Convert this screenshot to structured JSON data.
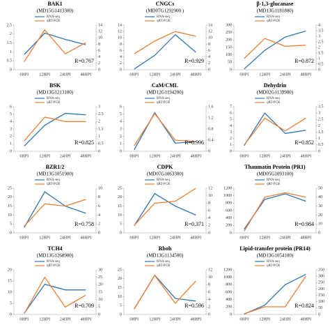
{
  "chart_data": [
    {
      "type": "line",
      "title": "BAK1",
      "subtitle": "(MD15G1413300)",
      "categories": [
        "0HPI",
        "12HPI",
        "24HPI",
        "48HPI"
      ],
      "series": [
        {
          "name": "RNA-seq",
          "color": "#2e75b6",
          "values": [
            0.85,
            2.05,
            1.7,
            1.4
          ]
        },
        {
          "name": "qRT-PCR",
          "color": "#ed7d31",
          "axis": "y2",
          "values": [
            2.5,
            12.5,
            5,
            8.5
          ]
        }
      ],
      "ylim": [
        0,
        2.5
      ],
      "yticks": [
        0,
        0.5,
        1,
        1.5,
        2,
        2.5
      ],
      "y2lim": [
        0,
        14
      ],
      "y2ticks": [
        0,
        2,
        4,
        6,
        8,
        10,
        12,
        14
      ],
      "annotation": "R=0.767"
    },
    {
      "type": "line",
      "title": "CNGCs",
      "subtitle": "(MD07G1292900 )",
      "categories": [
        "0HPI",
        "12HPI",
        "24HPI",
        "48HPI"
      ],
      "series": [
        {
          "name": "RNA-seq",
          "color": "#2e75b6",
          "values": [
            0.2,
            4.5,
            11,
            5.5
          ]
        },
        {
          "name": "qRT-PCR",
          "color": "#ed7d31",
          "axis": "y2",
          "values": [
            5,
            9,
            12,
            10.5
          ]
        }
      ],
      "ylim": [
        0,
        14
      ],
      "yticks": [
        0,
        2,
        4,
        6,
        8,
        10,
        12,
        14
      ],
      "y2lim": [
        0,
        14
      ],
      "y2ticks": [
        0,
        2,
        4,
        6,
        8,
        10,
        12,
        14
      ],
      "annotation": "R=0.929"
    },
    {
      "type": "line",
      "title": "β-1,3-glucanase",
      "subtitle": "(MD13G1181800)",
      "categories": [
        "0HPI",
        "12HPI",
        "24HPI",
        "48HPI"
      ],
      "series": [
        {
          "name": "RNA-seq",
          "color": "#2e75b6",
          "values": [
            5,
            130,
            220,
            260
          ]
        },
        {
          "name": "qRT-PCR",
          "color": "#ed7d31",
          "axis": "y2",
          "values": [
            1,
            2.8,
            2.1,
            2.2
          ]
        }
      ],
      "ylim": [
        0,
        300
      ],
      "yticks": [
        0,
        50,
        100,
        150,
        200,
        250,
        300
      ],
      "y2lim": [
        0,
        4
      ],
      "y2ticks": [
        0,
        0.5,
        1,
        1.5,
        2,
        2.5,
        3,
        3.5,
        4
      ],
      "annotation": "R=0.872"
    },
    {
      "type": "line",
      "title": "BSK",
      "subtitle": "(MD13G1213100)",
      "categories": [
        "0HPI",
        "12HPI",
        "24HPI",
        "48HPI"
      ],
      "series": [
        {
          "name": "RNA-seq",
          "color": "#2e75b6",
          "values": [
            0.7,
            3.5,
            5.1,
            4.9
          ]
        },
        {
          "name": "qRT-PCR",
          "color": "#ed7d31",
          "axis": "y2",
          "values": [
            0.7,
            2.3,
            2,
            2
          ]
        }
      ],
      "ylim": [
        0,
        6
      ],
      "yticks": [
        0,
        1,
        2,
        3,
        4,
        5,
        6
      ],
      "y2lim": [
        0,
        3
      ],
      "y2ticks": [
        0,
        0.5,
        1,
        1.5,
        2,
        2.5,
        3
      ],
      "annotation": "R=0.825"
    },
    {
      "type": "line",
      "title": "CaM/CML",
      "subtitle": "(MD12G1194200)",
      "categories": [
        "0HPI",
        "12HPI",
        "24HPI",
        "48HPI"
      ],
      "series": [
        {
          "name": "RNA-seq",
          "color": "#2e75b6",
          "values": [
            0.2,
            5.2,
            1.1,
            1.3
          ]
        },
        {
          "name": "qRT-PCR",
          "color": "#ed7d31",
          "axis": "y2",
          "values": [
            0.2,
            1.35,
            0.4,
            0.35
          ]
        }
      ],
      "ylim": [
        0,
        6
      ],
      "yticks": [
        0,
        1,
        2,
        3,
        4,
        5,
        6
      ],
      "y2lim": [
        0,
        1.6
      ],
      "y2ticks": [
        0,
        0.4,
        0.8,
        1.2,
        1.6
      ],
      "annotation": "R=0.996"
    },
    {
      "type": "line",
      "title": "Dehydrin",
      "subtitle": "(MD02G1139900)",
      "categories": [
        "0HPI",
        "12HPI",
        "24HPI",
        "48HPI"
      ],
      "series": [
        {
          "name": "RNA-seq",
          "color": "#2e75b6",
          "values": [
            0.9,
            6,
            2.8,
            3.3
          ]
        },
        {
          "name": "qRT-PCR",
          "color": "#ed7d31",
          "axis": "y2",
          "values": [
            0.5,
            2.6,
            1.6,
            2.6
          ]
        }
      ],
      "ylim": [
        0,
        7
      ],
      "yticks": [
        0,
        1,
        2,
        3,
        4,
        5,
        6,
        7
      ],
      "y2lim": [
        0,
        3.5
      ],
      "y2ticks": [
        0,
        0.5,
        1,
        1.5,
        2,
        2.5,
        3,
        3.5
      ],
      "annotation": "R=0.852"
    },
    {
      "type": "line",
      "title": "BZR1/2",
      "subtitle": "(MD13G1051900)",
      "categories": [
        "0HPI",
        "12HPI",
        "24HPI",
        "48HPI"
      ],
      "series": [
        {
          "name": "RNA-seq",
          "color": "#2e75b6",
          "values": [
            3,
            23,
            15,
            11
          ]
        },
        {
          "name": "qRT-PCR",
          "color": "#ed7d31",
          "axis": "y2",
          "values": [
            1.5,
            6.5,
            6,
            7.5
          ]
        }
      ],
      "ylim": [
        0,
        25
      ],
      "yticks": [
        0,
        5,
        10,
        15,
        20,
        25
      ],
      "y2lim": [
        0,
        10
      ],
      "y2ticks": [
        0,
        2,
        4,
        6,
        8,
        10
      ],
      "annotation": "R=0.758"
    },
    {
      "type": "line",
      "title": "CDPK",
      "subtitle": "(MD07G1063300)",
      "categories": [
        "0HPI",
        "12HPI",
        "24HPI",
        "48HPI"
      ],
      "series": [
        {
          "name": "RNA-seq",
          "color": "#2e75b6",
          "values": [
            4,
            22,
            15,
            10
          ]
        },
        {
          "name": "qRT-PCR",
          "color": "#ed7d31",
          "axis": "y2",
          "values": [
            2,
            8,
            8.5,
            12
          ]
        }
      ],
      "ylim": [
        0,
        25
      ],
      "yticks": [
        0,
        5,
        10,
        15,
        20,
        25
      ],
      "y2lim": [
        0,
        12
      ],
      "y2ticks": [
        0,
        2,
        4,
        6,
        8,
        10,
        12
      ],
      "annotation": "R=0.371"
    },
    {
      "type": "line",
      "title": "Thaumatin Protein (PR1)",
      "subtitle": "(MD05G1093100)",
      "categories": [
        "0HPI",
        "12HPI",
        "24HPI",
        "48HPI"
      ],
      "series": [
        {
          "name": "RNA-seq",
          "color": "#2e75b6",
          "values": [
            100,
            900,
            1050,
            850
          ]
        },
        {
          "name": "qRT-PCR",
          "color": "#ed7d31",
          "axis": "y2",
          "values": [
            2,
            40,
            45,
            40
          ]
        }
      ],
      "ylim": [
        0,
        1200
      ],
      "yticks": [
        0,
        200,
        400,
        600,
        800,
        1000,
        1200
      ],
      "y2lim": [
        0,
        50
      ],
      "y2ticks": [
        0,
        10,
        20,
        30,
        40,
        50
      ],
      "annotation": "R=0.984"
    },
    {
      "type": "line",
      "title": "TCH4",
      "subtitle": "(MD13G1268900)",
      "categories": [
        "0HPI",
        "12HPI",
        "24HPI",
        "48HPI"
      ],
      "series": [
        {
          "name": "RNA-seq",
          "color": "#2e75b6",
          "values": [
            0.5,
            13.5,
            11,
            11
          ]
        },
        {
          "name": "qRT-PCR",
          "color": "#ed7d31",
          "axis": "y2",
          "values": [
            0.5,
            25,
            5,
            13
          ]
        }
      ],
      "ylim": [
        0,
        20
      ],
      "yticks": [
        0,
        5,
        10,
        15,
        20
      ],
      "y2lim": [
        0,
        30
      ],
      "y2ticks": [
        0,
        5,
        10,
        15,
        20,
        25,
        30
      ],
      "annotation": "R=0.709"
    },
    {
      "type": "line",
      "title": "Rboh",
      "subtitle": "(MD13G1134500)",
      "categories": [
        "0HPI",
        "12HPI",
        "24HPI",
        "48HPI"
      ],
      "series": [
        {
          "name": "RNA-seq",
          "color": "#2e75b6",
          "values": [
            3,
            22,
            9,
            7.5
          ]
        },
        {
          "name": "qRT-PCR",
          "color": "#ed7d31",
          "axis": "y2",
          "values": [
            1.5,
            10.5,
            3,
            9
          ]
        }
      ],
      "ylim": [
        0,
        25
      ],
      "yticks": [
        0,
        5,
        10,
        15,
        20,
        25
      ],
      "y2lim": [
        0,
        12
      ],
      "y2ticks": [
        0,
        2,
        4,
        6,
        8,
        10,
        12
      ],
      "annotation": "R=0.596"
    },
    {
      "type": "line",
      "title": "Lipid-transfer protein (PR14)",
      "subtitle": "(MD13G1054100)",
      "categories": [
        "0HPI",
        "12HPI",
        "24HPI",
        "48HPI"
      ],
      "series": [
        {
          "name": "RNA-seq",
          "color": "#2e75b6",
          "values": [
            10,
            250,
            800,
            1080
          ]
        },
        {
          "name": "qRT-PCR",
          "color": "#ed7d31",
          "axis": "y2",
          "values": [
            5,
            60,
            60,
            300
          ]
        }
      ],
      "ylim": [
        0,
        1200
      ],
      "yticks": [
        0,
        200,
        400,
        600,
        800,
        1000,
        1200
      ],
      "y2lim": [
        0,
        350
      ],
      "y2ticks": [
        0,
        50,
        100,
        150,
        200,
        250,
        300,
        350
      ],
      "annotation": "R=0.824"
    }
  ]
}
